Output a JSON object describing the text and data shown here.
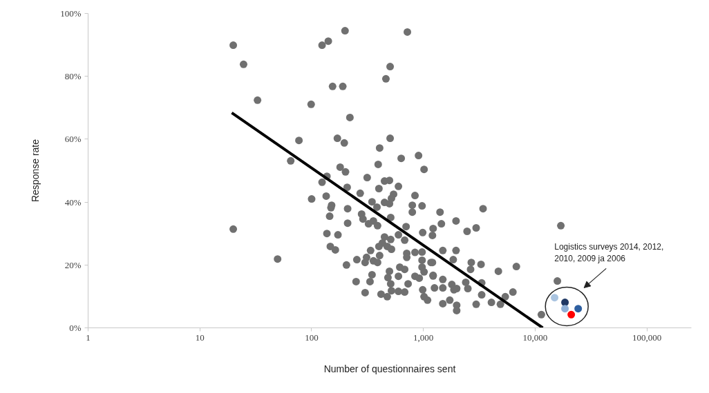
{
  "chart_data": {
    "type": "scatter",
    "xlabel": "Number of questionnaires sent",
    "ylabel": "Response rate",
    "log": "x",
    "marker": "circle",
    "xlim": [
      1,
      250000
    ],
    "ylim": [
      0,
      100
    ],
    "xticks": [
      1,
      10,
      100,
      {
        "value": 1000,
        "label": "1,000"
      },
      {
        "value": 10000,
        "label": "10,000"
      },
      {
        "value": 100000,
        "label": "100,000"
      }
    ],
    "yticks": [
      {
        "value": 0,
        "label": "0%"
      },
      {
        "value": 20,
        "label": "20%"
      },
      {
        "value": 40,
        "label": "40%"
      },
      {
        "value": 60,
        "label": "60%"
      },
      {
        "value": 80,
        "label": "80%"
      },
      {
        "value": 100,
        "label": "100%"
      }
    ],
    "annotations": [
      "Logistics surveys  2014, 2012,\n2010, 2009  ja 2006"
    ],
    "series": [
      {
        "color": "#707070",
        "x": [
          19.9,
          24.6,
          32.8,
          19.9,
          49.6,
          124,
          141,
          199,
          719,
          504,
          462,
          154,
          190,
          99,
          220,
          77,
          170,
          196,
          504,
          406,
          633,
          905,
          65,
          1014,
          394,
          180,
          201,
          314,
          137,
          124,
          449,
          497,
          208,
          400,
          598,
          272,
          541,
          518,
          841,
          100,
          135,
          347,
          449,
          497,
          151,
          149,
          796,
          973,
          210,
          384,
          796,
          145,
          210,
          280,
          288,
          357,
          323,
          389,
          510,
          1409,
          1449,
          1959,
          700,
          1222,
          137,
          172,
          986,
          1205,
          598,
          449,
          510,
          680,
          430,
          475,
          518,
          400,
          147,
          163,
          710,
          841,
          973,
          1492,
          1959,
          337,
          406,
          310,
          254,
          301,
          357,
          710,
          973,
          1170,
          1850,
          205,
          389,
          615,
          680,
          973,
          497,
          1014,
          1222,
          598,
          841,
          347,
          482,
          918,
          1492,
          250,
          333,
          510,
          730,
          1797,
          1257,
          1492,
          1986,
          986,
          518,
          598,
          680,
          301,
          418,
          475,
          1014,
          1089,
          1492,
          1722,
          1986,
          1986,
          3420,
          2966,
          2461,
          16980,
          1205,
          2683,
          3279,
          6792,
          4688,
          2645,
          1222,
          2393,
          3324,
          1876,
          2500,
          3324,
          6324,
          5405,
          2966,
          4062,
          4888,
          15810,
          11370
        ],
        "values": [
          89.9,
          83.8,
          72.4,
          31.4,
          21.9,
          89.9,
          91.2,
          94.5,
          94.1,
          83.1,
          79.2,
          76.8,
          76.8,
          71.1,
          66.9,
          59.6,
          60.3,
          58.8,
          60.3,
          57.2,
          53.9,
          54.8,
          53.1,
          50.4,
          52.0,
          51.1,
          49.6,
          47.8,
          48.2,
          46.3,
          46.7,
          46.9,
          44.7,
          44.3,
          45.0,
          42.8,
          42.5,
          41.2,
          42.1,
          41.0,
          41.9,
          40.1,
          39.9,
          39.5,
          39.0,
          38.2,
          39.0,
          38.8,
          37.9,
          38.4,
          36.8,
          35.5,
          33.3,
          36.2,
          34.6,
          34.0,
          33.1,
          32.5,
          35.1,
          36.8,
          33.1,
          34.0,
          32.2,
          31.6,
          30.0,
          29.6,
          30.3,
          29.4,
          29.6,
          28.9,
          28.1,
          27.9,
          27.0,
          25.9,
          25.0,
          25.9,
          25.9,
          24.8,
          23.7,
          24.0,
          24.1,
          24.6,
          24.6,
          24.6,
          23.0,
          22.4,
          21.7,
          20.8,
          21.3,
          22.4,
          21.5,
          20.8,
          21.7,
          20.0,
          20.8,
          19.3,
          18.6,
          19.3,
          18.0,
          17.8,
          16.7,
          16.4,
          16.4,
          16.9,
          16.0,
          15.8,
          15.4,
          14.7,
          14.7,
          14.0,
          14.0,
          13.8,
          12.7,
          12.7,
          12.5,
          12.1,
          11.8,
          11.6,
          11.4,
          11.2,
          10.7,
          9.9,
          9.9,
          8.8,
          7.7,
          8.8,
          7.2,
          5.5,
          37.9,
          31.8,
          30.7,
          32.5,
          20.8,
          20.8,
          20.2,
          19.5,
          18.0,
          18.6,
          16.5,
          14.5,
          14.3,
          12.1,
          12.5,
          10.5,
          11.4,
          9.9,
          7.5,
          8.1,
          7.5,
          14.9,
          4.2
        ]
      },
      {
        "x": [
          14930,
          18490,
          18490,
          24270,
          21040
        ],
        "values": [
          9.6,
          8.1,
          6.1,
          6.1,
          4.2
        ],
        "colors": [
          "#aac4e0",
          "#1f3864",
          "#8fb0d8",
          "#2e5fa0",
          "#ff0000"
        ]
      },
      {
        "type": "line",
        "marker": "none",
        "color": "#000000",
        "x": [
          19.3,
          11700
        ],
        "values": [
          68.4,
          0
        ]
      }
    ]
  }
}
